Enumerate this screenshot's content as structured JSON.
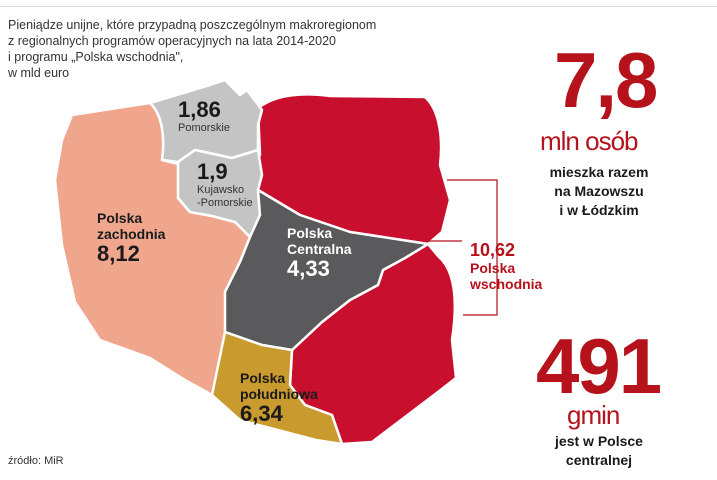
{
  "caption": [
    "Pieniądze unijne, które przypadną poszczególnym makroregionom",
    "z regionalnych programów operacyjnych na lata 2014-2020",
    "i programu „Polska wschodnia\",",
    "w mld euro"
  ],
  "source": "źródło: MiR",
  "colors": {
    "east": "#c8102e",
    "west": "#f0a68c",
    "pomorskie": "#c4c4c4",
    "kujawsko": "#c4c4c4",
    "central": "#5a5a5c",
    "south": "#c99a2e",
    "accent": "#b5121b"
  },
  "regions": {
    "pomorskie": {
      "value": "1,86",
      "name": [
        "Pomorskie"
      ]
    },
    "kujawsko": {
      "value": "1,9",
      "name": [
        "Kujawsko",
        "-Pomorskie"
      ]
    },
    "zachodnia": {
      "name": [
        "Polska",
        "zachodnia"
      ],
      "value": "8,12"
    },
    "centralna": {
      "name": [
        "Polska",
        "Centralna"
      ],
      "value": "4,33"
    },
    "poludniowa": {
      "name": [
        "Polska",
        "południowa"
      ],
      "value": "6,34"
    },
    "wschodnia": {
      "value": "10,62",
      "name": [
        "Polska",
        "wschodnia"
      ]
    }
  },
  "stats": {
    "people": {
      "number": "7,8",
      "unit": "mln osób",
      "desc": [
        "mieszka razem",
        "na Mazowszu",
        "i w Łódzkim"
      ]
    },
    "gminy": {
      "number": "491",
      "unit": "gmin",
      "desc": [
        "jest w Polsce",
        "centralnej"
      ]
    }
  }
}
